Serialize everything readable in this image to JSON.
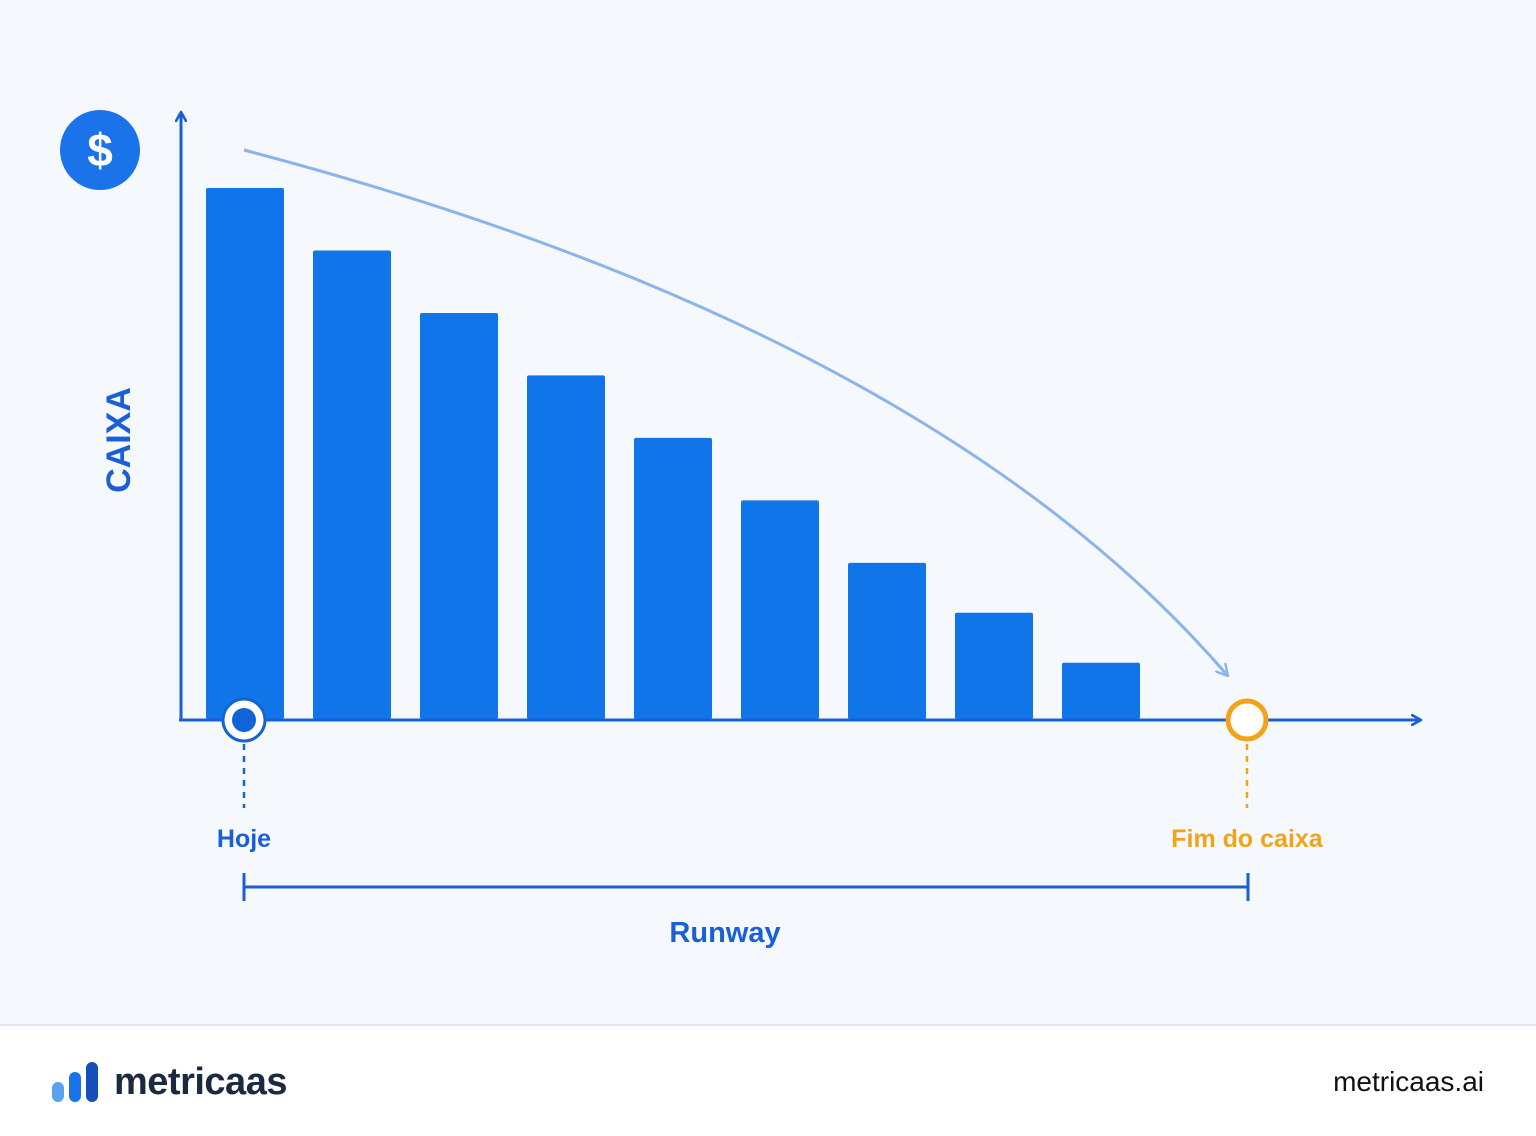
{
  "chart_data": {
    "type": "bar",
    "categories": [
      "",
      "",
      "",
      "",
      "",
      "",
      "",
      "",
      ""
    ],
    "values": [
      8.5,
      7.5,
      6.5,
      5.5,
      4.5,
      3.5,
      2.5,
      1.7,
      0.9
    ],
    "ylabel": "CAIXA",
    "xlabel": "",
    "markers": {
      "start": "Hoje",
      "end": "Fim do caixa"
    },
    "span_label": "Runway",
    "grid": false,
    "legend": "none"
  },
  "colors": {
    "bar": "#0f75e8",
    "axis": "#1a5fd6",
    "trend": "#8ab4ec",
    "start_marker": "#1262d8",
    "end_marker": "#f2a31a",
    "background": "#f5f8fc"
  },
  "icons": {
    "currency": "dollar-icon"
  },
  "footer": {
    "brand": "metricaas",
    "url": "metricaas.ai"
  }
}
